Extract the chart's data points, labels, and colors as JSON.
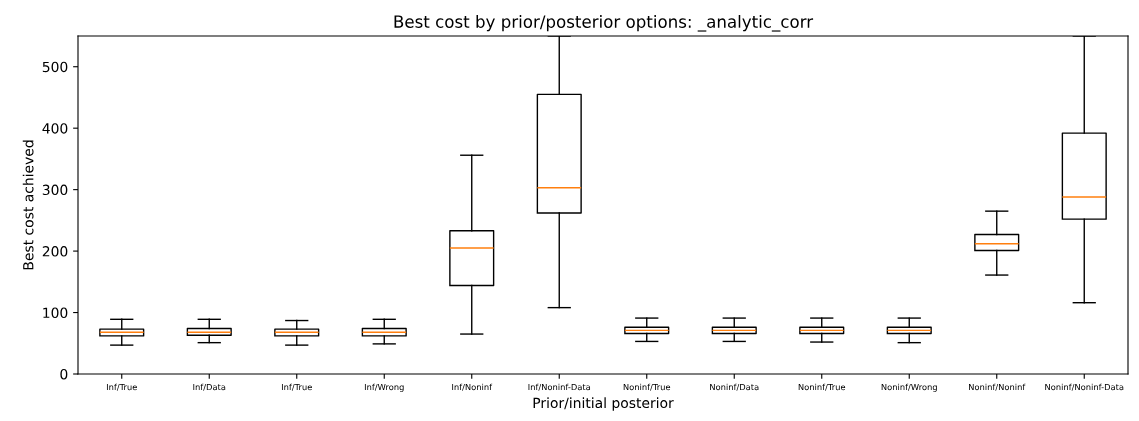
{
  "chart_data": {
    "type": "box",
    "title": "Best cost by prior/posterior options: _analytic_corr",
    "xlabel": "Prior/initial posterior",
    "ylabel": "Best cost achieved",
    "categories": [
      "Inf/True",
      "Inf/Data",
      "Inf/True",
      "Inf/Wrong",
      "Inf/Noninf",
      "Inf/Noninf-Data",
      "Noninf/True",
      "Noninf/Data",
      "Noninf/True",
      "Noninf/Wrong",
      "Noninf/Noninf",
      "Noninf/Noninf-Data"
    ],
    "boxes": [
      {
        "low": 47,
        "q1": 62,
        "median": 68,
        "q3": 73,
        "high": 89
      },
      {
        "low": 51,
        "q1": 63,
        "median": 68,
        "q3": 74,
        "high": 89
      },
      {
        "low": 47,
        "q1": 62,
        "median": 68,
        "q3": 73,
        "high": 87
      },
      {
        "low": 49,
        "q1": 62,
        "median": 68,
        "q3": 74,
        "high": 89
      },
      {
        "low": 65,
        "q1": 144,
        "median": 205,
        "q3": 233,
        "high": 356
      },
      {
        "low": 108,
        "q1": 262,
        "median": 303,
        "q3": 455,
        "high": 550
      },
      {
        "low": 53,
        "q1": 66,
        "median": 71,
        "q3": 76,
        "high": 91
      },
      {
        "low": 53,
        "q1": 66,
        "median": 71,
        "q3": 76,
        "high": 91
      },
      {
        "low": 52,
        "q1": 66,
        "median": 71,
        "q3": 76,
        "high": 91
      },
      {
        "low": 51,
        "q1": 66,
        "median": 71,
        "q3": 76,
        "high": 91
      },
      {
        "low": 161,
        "q1": 201,
        "median": 212,
        "q3": 227,
        "high": 265
      },
      {
        "low": 116,
        "q1": 252,
        "median": 288,
        "q3": 392,
        "high": 550
      }
    ],
    "color": "#000000",
    "ylim": [
      0,
      550
    ],
    "yticks": [
      0,
      100,
      200,
      300,
      400,
      500
    ],
    "grid": false
  }
}
